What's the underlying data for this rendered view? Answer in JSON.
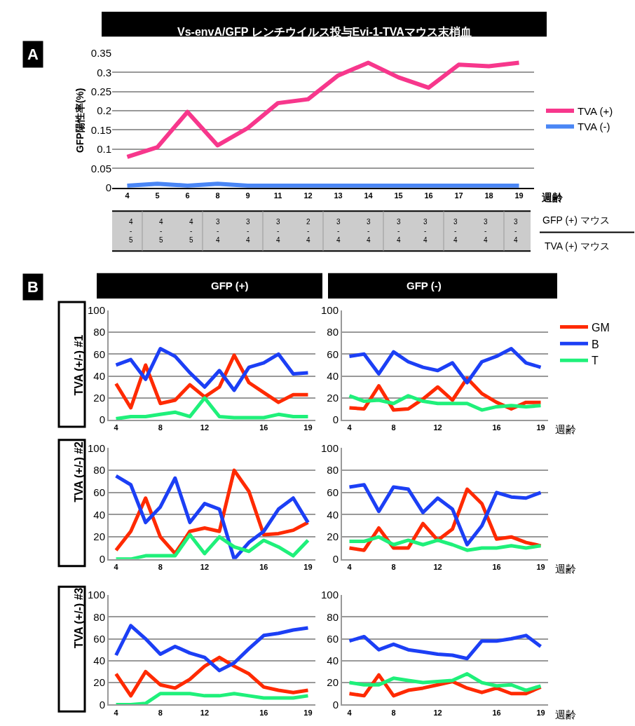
{
  "chart_data": [
    {
      "type": "line",
      "title": "Vs-envA/GFP レンチウイルス投与Evi-1-TVAマウス末梢血",
      "ylabel": "GFP陽性率(%)",
      "xlabel": "週齢",
      "categories": [
        "4",
        "5",
        "6",
        "8",
        "9",
        "11",
        "12",
        "13",
        "14",
        "15",
        "16",
        "17",
        "18",
        "19"
      ],
      "ylim": [
        0,
        0.35
      ],
      "yticks": [
        0,
        0.05,
        0.1,
        0.15,
        0.2,
        0.25,
        0.3,
        0.35
      ],
      "grid": "y",
      "legend": "right",
      "marker": "none",
      "line_style": "solid",
      "series": [
        {
          "name": "TVA (+)",
          "color": "#f7378c",
          "values": [
            0.08,
            0.105,
            0.197,
            0.11,
            0.155,
            0.22,
            0.23,
            0.292,
            0.325,
            0.287,
            0.26,
            0.32,
            0.316,
            0.325
          ]
        },
        {
          "name": "TVA (-)",
          "color": "#4a86f5",
          "values": [
            0.005,
            0.01,
            0.005,
            0.01,
            0.005,
            0.005,
            0.005,
            0.005,
            0.005,
            0.005,
            0.005,
            0.005,
            0.005,
            0.005
          ]
        }
      ],
      "annotations": [
        "A",
        "GFP (+) マウス",
        "TVA (+) マウス",
        "4\n-\n5",
        "4\n-\n5",
        "4\n-\n5",
        "3\n-\n4",
        "3\n-\n4",
        "3\n-\n4",
        "2\n-\n4",
        "3\n-\n4",
        "3\n-\n4",
        "3\n-\n4",
        "3\n-\n4",
        "3\n-\n4",
        "3\n-\n4",
        "3\n-\n4"
      ]
    },
    {
      "type": "line",
      "title": "GFP (+)",
      "ylabel": "TVA (+/-) #1",
      "annotations": [
        "B"
      ],
      "categories": [
        "4",
        null,
        null,
        "8",
        null,
        null,
        "12",
        null,
        null,
        null,
        "16",
        null,
        null,
        "19"
      ],
      "ylim": [
        0,
        100
      ],
      "yticks": [
        0,
        20,
        40,
        60,
        80,
        100
      ],
      "grid": "y",
      "marker": "none",
      "series": [
        {
          "color": "#ff2a00",
          "values": [
            33,
            11,
            50,
            15,
            18,
            32,
            21,
            30,
            59,
            34,
            25,
            16,
            23,
            23
          ]
        },
        {
          "color": "#1c3ff5",
          "values": [
            50,
            55,
            37,
            65,
            58,
            43,
            30,
            45,
            27,
            48,
            52,
            60,
            42,
            43
          ]
        },
        {
          "color": "#1ff07a",
          "values": [
            1,
            3,
            3,
            5,
            7,
            3,
            20,
            3,
            2,
            2,
            2,
            5,
            3,
            3
          ]
        }
      ]
    },
    {
      "type": "line",
      "title": "GFP (-)",
      "xlabel": "週齢",
      "categories": [
        "4",
        null,
        null,
        "8",
        null,
        null,
        "12",
        null,
        null,
        null,
        "16",
        null,
        null,
        "19"
      ],
      "ylim": [
        0,
        100
      ],
      "yticks": [
        0,
        20,
        40,
        60,
        80,
        100
      ],
      "grid": "y",
      "legend": "right",
      "marker": "none",
      "series": [
        {
          "name": "GM",
          "color": "#ff2a00",
          "values": [
            11,
            10,
            31,
            9,
            10,
            19,
            30,
            18,
            38,
            24,
            16,
            10,
            16,
            16
          ]
        },
        {
          "name": "B",
          "color": "#1c3ff5",
          "values": [
            58,
            60,
            42,
            62,
            53,
            48,
            45,
            52,
            34,
            53,
            58,
            65,
            52,
            48
          ]
        },
        {
          "name": "T",
          "color": "#1ff07a",
          "values": [
            22,
            17,
            18,
            15,
            22,
            17,
            15,
            15,
            15,
            9,
            12,
            13,
            12,
            13
          ]
        }
      ]
    },
    {
      "type": "line",
      "ylabel": "TVA (+/-) #2",
      "categories": [
        "4",
        null,
        null,
        "8",
        null,
        null,
        "12",
        null,
        null,
        null,
        "16",
        null,
        null,
        "19"
      ],
      "ylim": [
        0,
        100
      ],
      "yticks": [
        0,
        20,
        40,
        60,
        80,
        100
      ],
      "grid": "y",
      "marker": "none",
      "series": [
        {
          "color": "#ff2a00",
          "values": [
            8,
            25,
            55,
            20,
            5,
            25,
            28,
            25,
            80,
            61,
            22,
            23,
            26,
            33
          ]
        },
        {
          "color": "#1c3ff5",
          "values": [
            75,
            67,
            33,
            47,
            73,
            33,
            50,
            45,
            0,
            15,
            25,
            45,
            55,
            33
          ]
        },
        {
          "color": "#1ff07a",
          "values": [
            0,
            0,
            3,
            3,
            3,
            22,
            5,
            20,
            11,
            7,
            17,
            11,
            3,
            17
          ]
        }
      ]
    },
    {
      "type": "line",
      "xlabel": "週齢",
      "categories": [
        "4",
        null,
        null,
        "8",
        null,
        null,
        "12",
        null,
        null,
        null,
        "16",
        null,
        null,
        "19"
      ],
      "ylim": [
        0,
        100
      ],
      "yticks": [
        0,
        20,
        40,
        60,
        80,
        100
      ],
      "grid": "y",
      "marker": "none",
      "series": [
        {
          "color": "#ff2a00",
          "values": [
            10,
            8,
            28,
            10,
            10,
            32,
            17,
            27,
            63,
            50,
            18,
            20,
            15,
            12
          ]
        },
        {
          "color": "#1c3ff5",
          "values": [
            65,
            67,
            43,
            65,
            63,
            42,
            55,
            45,
            13,
            30,
            60,
            56,
            55,
            60
          ]
        },
        {
          "color": "#1ff07a",
          "values": [
            16,
            16,
            20,
            13,
            17,
            13,
            17,
            13,
            8,
            10,
            10,
            12,
            10,
            12
          ]
        }
      ]
    },
    {
      "type": "line",
      "ylabel": "TVA (+/-) #3",
      "categories": [
        "4",
        null,
        null,
        "8",
        null,
        null,
        "12",
        null,
        null,
        null,
        "16",
        null,
        null,
        "19"
      ],
      "ylim": [
        0,
        100
      ],
      "yticks": [
        0,
        20,
        40,
        60,
        80,
        100
      ],
      "grid": "y",
      "marker": "none",
      "series": [
        {
          "color": "#ff2a00",
          "values": [
            28,
            8,
            30,
            18,
            15,
            23,
            35,
            43,
            35,
            28,
            16,
            13,
            11,
            13
          ]
        },
        {
          "color": "#1c3ff5",
          "values": [
            45,
            72,
            60,
            46,
            53,
            47,
            43,
            31,
            38,
            51,
            63,
            65,
            68,
            70
          ]
        },
        {
          "color": "#1ff07a",
          "values": [
            0,
            0,
            1,
            10,
            10,
            10,
            8,
            8,
            10,
            8,
            6,
            6,
            6,
            8
          ]
        }
      ]
    },
    {
      "type": "line",
      "xlabel": "週齢",
      "categories": [
        "4",
        null,
        null,
        "8",
        null,
        null,
        "12",
        null,
        null,
        null,
        "16",
        null,
        null,
        "19"
      ],
      "ylim": [
        0,
        100
      ],
      "yticks": [
        0,
        20,
        40,
        60,
        80,
        100
      ],
      "grid": "y",
      "marker": "none",
      "series": [
        {
          "color": "#ff2a00",
          "values": [
            10,
            8,
            27,
            8,
            13,
            15,
            18,
            21,
            15,
            11,
            15,
            10,
            10,
            16
          ]
        },
        {
          "color": "#1c3ff5",
          "values": [
            58,
            62,
            50,
            55,
            50,
            48,
            46,
            45,
            42,
            58,
            58,
            60,
            63,
            53
          ]
        },
        {
          "color": "#1ff07a",
          "values": [
            20,
            18,
            18,
            24,
            22,
            20,
            21,
            22,
            28,
            20,
            17,
            18,
            13,
            17
          ]
        }
      ]
    }
  ]
}
